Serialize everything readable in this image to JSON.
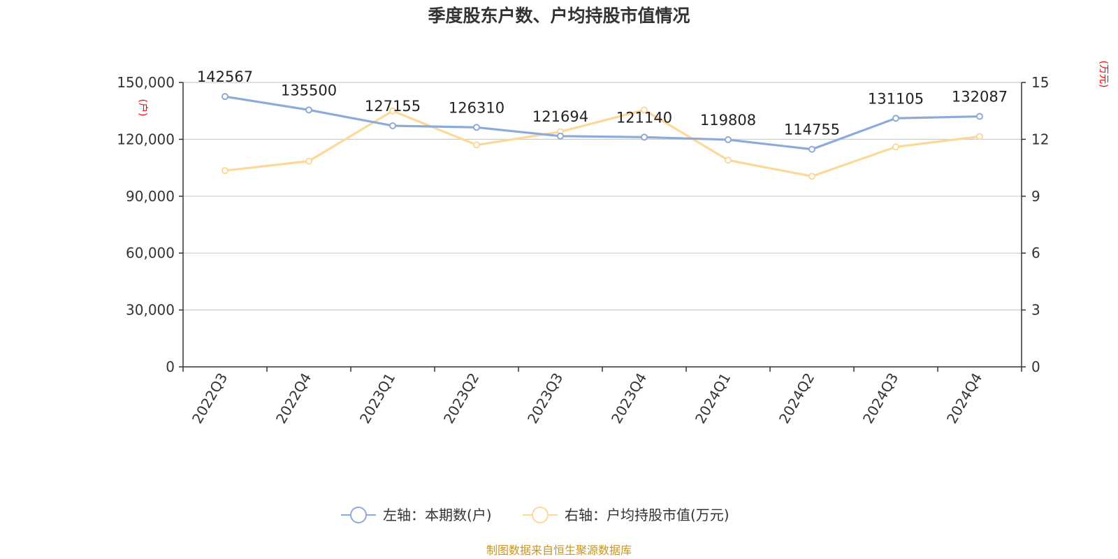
{
  "chart_data": {
    "type": "line",
    "title": "季度股东户数、户均持股市值情况",
    "categories": [
      "2022Q3",
      "2022Q4",
      "2023Q1",
      "2023Q2",
      "2023Q3",
      "2023Q4",
      "2024Q1",
      "2024Q2",
      "2024Q3",
      "2024Q4"
    ],
    "left_axis": {
      "unit": "(户)",
      "ylim": [
        0,
        150000
      ],
      "ticks": [
        "0",
        "30,000",
        "60,000",
        "90,000",
        "120,000",
        "150,000"
      ]
    },
    "right_axis": {
      "unit": "(万元)",
      "ylim": [
        0,
        15
      ],
      "ticks": [
        "0",
        "3",
        "6",
        "9",
        "12",
        "15"
      ]
    },
    "grid": true,
    "legend_position": "bottom",
    "series": [
      {
        "name": "左轴：本期数(户)",
        "axis": "left",
        "color": "#8eaad8",
        "values": [
          142567,
          135500,
          127155,
          126310,
          121694,
          121140,
          119808,
          114755,
          131105,
          132087
        ],
        "labels": [
          "142567",
          "135500",
          "127155",
          "126310",
          "121694",
          "121140",
          "119808",
          "114755",
          "131105",
          "132087"
        ]
      },
      {
        "name": "右轴：户均持股市值(万元)",
        "axis": "right",
        "color": "#fcd899",
        "values": [
          10.35,
          10.85,
          13.5,
          11.7,
          12.4,
          13.55,
          10.9,
          10.05,
          11.6,
          12.15
        ]
      }
    ],
    "source": "制图数据来自恒生聚源数据库"
  }
}
